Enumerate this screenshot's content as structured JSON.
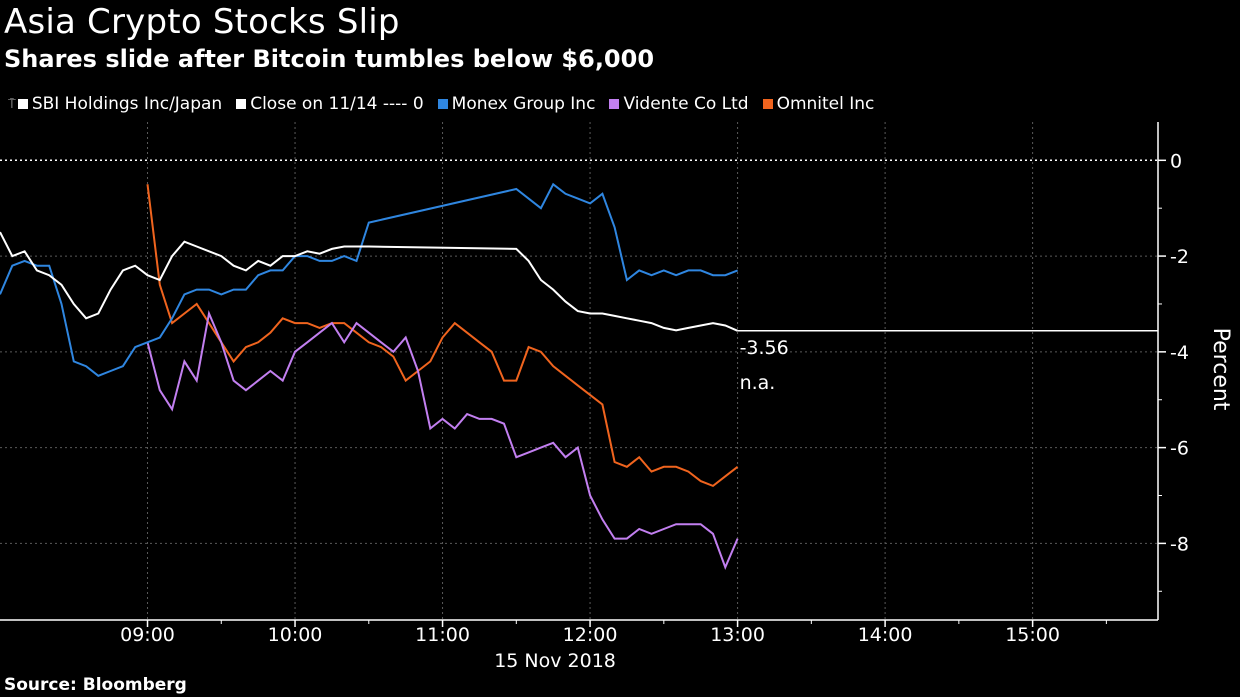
{
  "title": "Asia Crypto Stocks Slip",
  "subtitle": "Shares slide after Bitcoin tumbles below $6,000",
  "source": "Source: Bloomberg",
  "legend": {
    "sbi": "SBI Holdings Inc/Japan",
    "close": "Close on 11/14 ---- 0",
    "monex": "Monex Group Inc",
    "vidente": "Vidente Co Ltd",
    "omnitel": "Omnitel Inc"
  },
  "colors": {
    "sbi": "#ffffff",
    "monex": "#2f86e0",
    "vidente": "#c27ff0",
    "omnitel": "#f0641e",
    "grid": "#5a5a5a"
  },
  "chart_data": {
    "type": "line",
    "title": "Asia Crypto Stocks Slip",
    "subtitle": "Shares slide after Bitcoin tumbles below $6,000",
    "xlabel": "15 Nov 2018",
    "ylabel": "Percent",
    "x_ticks": [
      "09:00",
      "10:00",
      "11:00",
      "12:00",
      "13:00",
      "14:00",
      "15:00"
    ],
    "y_ticks": [
      0,
      -2,
      -4,
      -6,
      -8
    ],
    "xlim": [
      "08:00",
      "15:51"
    ],
    "ylim": [
      -9.6,
      0.8
    ],
    "reference_line": {
      "label": "Close on 11/14",
      "value": 0
    },
    "last_value_line": {
      "value": -3.56,
      "from": "13:00"
    },
    "annotations": [
      {
        "text": "-3.56",
        "x": "13:00",
        "y": -3.56
      },
      {
        "text": "n.a.",
        "x": "13:00",
        "y": -4.3
      }
    ],
    "grid": true,
    "legend_position": "top",
    "series": [
      {
        "name": "SBI Holdings Inc/Japan",
        "x": [
          "08:00",
          "08:05",
          "08:10",
          "08:15",
          "08:20",
          "08:25",
          "08:30",
          "08:35",
          "08:40",
          "08:45",
          "08:50",
          "08:55",
          "09:00",
          "09:05",
          "09:10",
          "09:15",
          "09:20",
          "09:25",
          "09:30",
          "09:35",
          "09:40",
          "09:45",
          "09:50",
          "09:55",
          "10:00",
          "10:05",
          "10:10",
          "10:15",
          "10:20",
          "10:25",
          "10:30",
          "11:30",
          "11:35",
          "11:40",
          "11:45",
          "11:50",
          "11:55",
          "12:00",
          "12:05",
          "12:10",
          "12:15",
          "12:20",
          "12:25",
          "12:30",
          "12:35",
          "12:40",
          "12:45",
          "12:50",
          "12:55",
          "13:00"
        ],
        "y": [
          -1.5,
          -2.0,
          -1.9,
          -2.3,
          -2.4,
          -2.6,
          -3.0,
          -3.3,
          -3.2,
          -2.7,
          -2.3,
          -2.2,
          -2.4,
          -2.5,
          -2.0,
          -1.7,
          -1.8,
          -1.9,
          -2.0,
          -2.2,
          -2.3,
          -2.1,
          -2.2,
          -2.0,
          -2.0,
          -1.9,
          -1.95,
          -1.85,
          -1.8,
          -1.8,
          -1.8,
          -1.85,
          -2.1,
          -2.5,
          -2.7,
          -2.95,
          -3.15,
          -3.2,
          -3.2,
          -3.25,
          -3.3,
          -3.35,
          -3.4,
          -3.5,
          -3.55,
          -3.5,
          -3.45,
          -3.4,
          -3.45,
          -3.56
        ]
      },
      {
        "name": "Monex Group Inc",
        "x": [
          "08:00",
          "08:05",
          "08:10",
          "08:15",
          "08:20",
          "08:25",
          "08:30",
          "08:35",
          "08:40",
          "08:45",
          "08:50",
          "08:55",
          "09:00",
          "09:05",
          "09:10",
          "09:15",
          "09:20",
          "09:25",
          "09:30",
          "09:35",
          "09:40",
          "09:45",
          "09:50",
          "09:55",
          "10:00",
          "10:05",
          "10:10",
          "10:15",
          "10:20",
          "10:25",
          "10:30",
          "11:30",
          "11:35",
          "11:40",
          "11:45",
          "11:50",
          "11:55",
          "12:00",
          "12:05",
          "12:10",
          "12:15",
          "12:20",
          "12:25",
          "12:30",
          "12:35",
          "12:40",
          "12:45",
          "12:50",
          "12:55",
          "13:00"
        ],
        "y": [
          -2.8,
          -2.2,
          -2.1,
          -2.2,
          -2.2,
          -3.0,
          -4.2,
          -4.3,
          -4.5,
          -4.4,
          -4.3,
          -3.9,
          -3.8,
          -3.7,
          -3.3,
          -2.8,
          -2.7,
          -2.7,
          -2.8,
          -2.7,
          -2.7,
          -2.4,
          -2.3,
          -2.3,
          -2.0,
          -2.0,
          -2.1,
          -2.1,
          -2.0,
          -2.1,
          -1.3,
          -0.6,
          -0.8,
          -1.0,
          -0.5,
          -0.7,
          -0.8,
          -0.9,
          -0.7,
          -1.4,
          -2.5,
          -2.3,
          -2.4,
          -2.3,
          -2.4,
          -2.3,
          -2.3,
          -2.4,
          -2.4,
          -2.3
        ]
      },
      {
        "name": "Vidente Co Ltd",
        "x": [
          "09:00",
          "09:05",
          "09:10",
          "09:15",
          "09:20",
          "09:25",
          "09:30",
          "09:35",
          "09:40",
          "09:45",
          "09:50",
          "09:55",
          "10:00",
          "10:05",
          "10:10",
          "10:15",
          "10:20",
          "10:25",
          "10:30",
          "10:35",
          "10:40",
          "10:45",
          "10:50",
          "10:55",
          "11:00",
          "11:05",
          "11:10",
          "11:15",
          "11:20",
          "11:25",
          "11:30",
          "11:35",
          "11:40",
          "11:45",
          "11:50",
          "11:55",
          "12:00",
          "12:05",
          "12:10",
          "12:15",
          "12:20",
          "12:25",
          "12:30",
          "12:35",
          "12:40",
          "12:45",
          "12:50",
          "12:55",
          "13:00"
        ],
        "y": [
          -3.8,
          -4.8,
          -5.2,
          -4.2,
          -4.6,
          -3.2,
          -3.8,
          -4.6,
          -4.8,
          -4.6,
          -4.4,
          -4.6,
          -4.0,
          -3.8,
          -3.6,
          -3.4,
          -3.8,
          -3.4,
          -3.6,
          -3.8,
          -4.0,
          -3.7,
          -4.4,
          -5.6,
          -5.4,
          -5.6,
          -5.3,
          -5.4,
          -5.4,
          -5.5,
          -6.2,
          -6.1,
          -6.0,
          -5.9,
          -6.2,
          -6.0,
          -7.0,
          -7.5,
          -7.9,
          -7.9,
          -7.7,
          -7.8,
          -7.7,
          -7.6,
          -7.6,
          -7.6,
          -7.8,
          -8.5,
          -7.9
        ]
      },
      {
        "name": "Omnitel Inc",
        "x": [
          "09:00",
          "09:05",
          "09:10",
          "09:15",
          "09:20",
          "09:25",
          "09:30",
          "09:35",
          "09:40",
          "09:45",
          "09:50",
          "09:55",
          "10:00",
          "10:05",
          "10:10",
          "10:15",
          "10:20",
          "10:25",
          "10:30",
          "10:35",
          "10:40",
          "10:45",
          "10:50",
          "10:55",
          "11:00",
          "11:05",
          "11:10",
          "11:15",
          "11:20",
          "11:25",
          "11:30",
          "11:35",
          "11:40",
          "11:45",
          "11:50",
          "11:55",
          "12:00",
          "12:05",
          "12:10",
          "12:15",
          "12:20",
          "12:25",
          "12:30",
          "12:35",
          "12:40",
          "12:45",
          "12:50",
          "12:55",
          "13:00"
        ],
        "y": [
          -0.5,
          -2.6,
          -3.4,
          -3.2,
          -3.0,
          -3.4,
          -3.8,
          -4.2,
          -3.9,
          -3.8,
          -3.6,
          -3.3,
          -3.4,
          -3.4,
          -3.5,
          -3.4,
          -3.4,
          -3.6,
          -3.8,
          -3.9,
          -4.1,
          -4.6,
          -4.4,
          -4.2,
          -3.7,
          -3.4,
          -3.6,
          -3.8,
          -4.0,
          -4.6,
          -4.6,
          -3.9,
          -4.0,
          -4.3,
          -4.5,
          -4.7,
          -4.9,
          -5.1,
          -6.3,
          -6.4,
          -6.2,
          -6.5,
          -6.4,
          -6.4,
          -6.5,
          -6.7,
          -6.8,
          -6.6,
          -6.4
        ]
      }
    ]
  }
}
